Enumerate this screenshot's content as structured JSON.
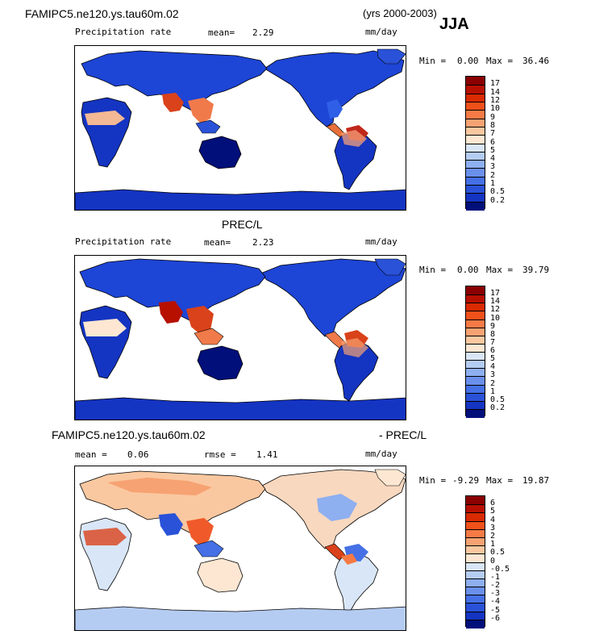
{
  "header": {
    "case_title": "FAMIPC5.ne120.ys.tau60m.02",
    "years": "(yrs 2000-2003)",
    "season": "JJA"
  },
  "panel1": {
    "variable": "Precipitation rate",
    "mean_label": "mean=",
    "mean_value": "2.29",
    "units": "mm/day",
    "min_label": "Min =",
    "min_value": "0.00",
    "max_label": "Max =",
    "max_value": "36.46"
  },
  "panel2": {
    "title": "PREC/L",
    "variable": "Precipitation rate",
    "mean_label": "mean=",
    "mean_value": "2.23",
    "units": "mm/day",
    "min_label": "Min =",
    "min_value": "0.00",
    "max_label": "Max =",
    "max_value": "39.79"
  },
  "panel3": {
    "title_left": "FAMIPC5.ne120.ys.tau60m.02",
    "title_right": "- PREC/L",
    "mean_label": "mean =",
    "mean_value": "0.06",
    "rmse_label": "rmse =",
    "rmse_value": "1.41",
    "units": "mm/day",
    "min_label": "Min =",
    "min_value": "-9.29",
    "max_label": "Max =",
    "max_value": "19.87"
  },
  "colorbar_abs": {
    "labels": [
      "17",
      "14",
      "12",
      "10",
      "9",
      "8",
      "7",
      "6",
      "5",
      "4",
      "3",
      "2",
      "1",
      "0.5",
      "0.2"
    ],
    "colors": [
      "#8b0000",
      "#b71000",
      "#d92a00",
      "#f0501a",
      "#f57a45",
      "#f7a272",
      "#fac8a0",
      "#fde7d2",
      "#d9e6f7",
      "#b5ccf2",
      "#8eaff0",
      "#6a90ec",
      "#4570e6",
      "#2a52d8",
      "#1434c2",
      "#000f7a"
    ]
  },
  "colorbar_diff": {
    "labels": [
      "6",
      "5",
      "4",
      "3",
      "2",
      "1",
      "0.5",
      "0",
      "-0.5",
      "-1",
      "-2",
      "-3",
      "-4",
      "-5",
      "-6"
    ],
    "colors": [
      "#8b0000",
      "#b71000",
      "#d92a00",
      "#f0501a",
      "#f57a45",
      "#f7a272",
      "#fac8a0",
      "#fde7d2",
      "#d9e6f7",
      "#b5ccf2",
      "#8eaff0",
      "#6a90ec",
      "#4570e6",
      "#2a52d8",
      "#1434c2",
      "#000f7a"
    ]
  }
}
